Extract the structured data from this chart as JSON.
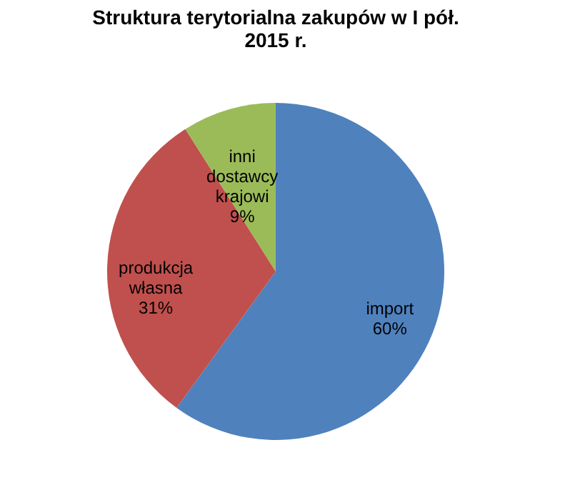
{
  "chart_data": {
    "type": "pie",
    "title": "Struktura terytorialna zakupów w I pół. 2015 r.",
    "categories": [
      "import",
      "produkcja własna",
      "inni dostawcy krajowi"
    ],
    "values": [
      60,
      31,
      9
    ],
    "colors": [
      "#4f81bd",
      "#c0504d",
      "#9bbb59"
    ],
    "value_labels": [
      "60%",
      "31%",
      "9%"
    ]
  }
}
